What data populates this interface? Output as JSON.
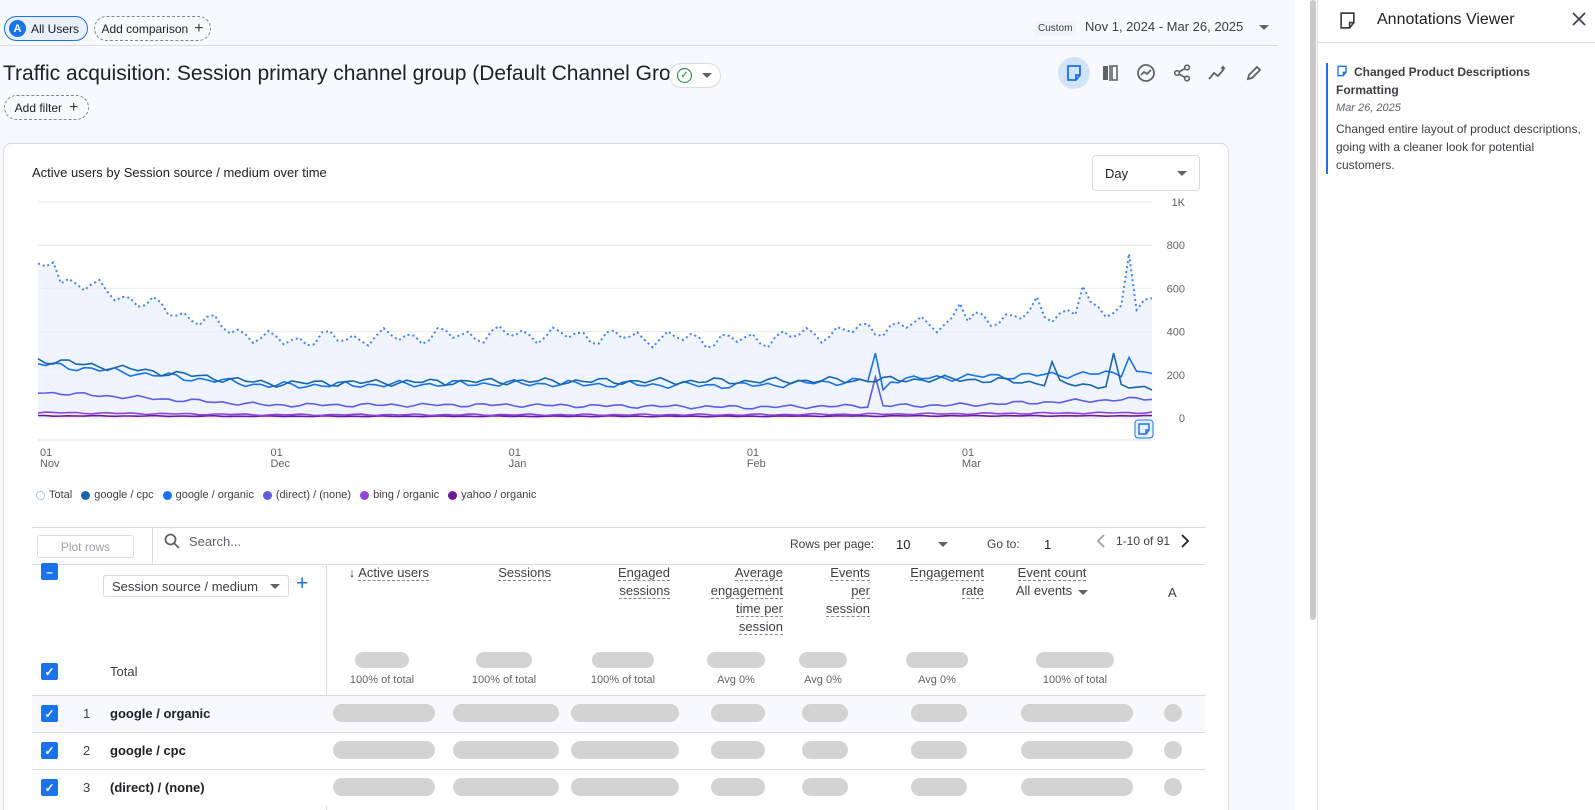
{
  "header": {
    "segment_chip": "All Users",
    "segment_avatar": "A",
    "add_comparison": "Add comparison",
    "date_badge": "Custom",
    "date_range": "Nov 1, 2024 - Mar 26, 2025"
  },
  "report": {
    "title": "Traffic acquisition: Session primary channel group (Default Channel Group)",
    "add_filter": "Add filter"
  },
  "chart": {
    "title": "Active users by Session source / medium over time",
    "granularity": "Day",
    "x_ticks": [
      {
        "day": "01",
        "month": "Nov"
      },
      {
        "day": "01",
        "month": "Dec"
      },
      {
        "day": "01",
        "month": "Jan"
      },
      {
        "day": "01",
        "month": "Feb"
      },
      {
        "day": "01",
        "month": "Mar"
      }
    ],
    "y_ticks": [
      "1K",
      "800",
      "600",
      "400",
      "200",
      "0"
    ],
    "legend": [
      {
        "label": "Total",
        "color": "#4285f4",
        "style": "dotted"
      },
      {
        "label": "google / cpc",
        "color": "#1967a8"
      },
      {
        "label": "google / organic",
        "color": "#1a73e8"
      },
      {
        "label": "(direct) / (none)",
        "color": "#5b5fe0"
      },
      {
        "label": "bing / organic",
        "color": "#8e44d6"
      },
      {
        "label": "yahoo / organic",
        "color": "#6a1b9a"
      }
    ]
  },
  "chart_data": {
    "type": "line",
    "title": "Active users by Session source / medium over time",
    "x": [
      "Nov 1",
      "Dec 1",
      "Jan 1",
      "Feb 1",
      "Mar 1",
      "Mar 26"
    ],
    "ylim": [
      0,
      1000
    ],
    "series": [
      {
        "name": "Total",
        "values": [
          680,
          360,
          390,
          360,
          450,
          520
        ]
      },
      {
        "name": "google / cpc",
        "values": [
          270,
          160,
          170,
          170,
          180,
          140
        ]
      },
      {
        "name": "google / organic",
        "values": [
          250,
          150,
          160,
          150,
          190,
          210
        ]
      },
      {
        "name": "(direct) / (none)",
        "values": [
          120,
          60,
          60,
          50,
          60,
          90
        ]
      },
      {
        "name": "bing / organic",
        "values": [
          25,
          15,
          15,
          15,
          20,
          25
        ]
      },
      {
        "name": "yahoo / organic",
        "values": [
          10,
          8,
          8,
          8,
          10,
          10
        ]
      }
    ]
  },
  "table": {
    "plot_rows": "Plot rows",
    "search_placeholder": "Search...",
    "rows_per_page_label": "Rows per page:",
    "rows_per_page": "10",
    "goto_label": "Go to:",
    "goto_value": "1",
    "page_range": "1-10 of 91",
    "dimension": "Session source / medium",
    "columns": [
      {
        "lines": [
          "Active users"
        ],
        "sub": "100% of total"
      },
      {
        "lines": [
          "Sessions"
        ],
        "sub": "100% of total"
      },
      {
        "lines": [
          "Engaged",
          "sessions"
        ],
        "sub": "100% of total"
      },
      {
        "lines": [
          "Average",
          "engagement",
          "time per",
          "session"
        ],
        "sub": "Avg 0%"
      },
      {
        "lines": [
          "Events",
          "per",
          "session"
        ],
        "sub": "Avg 0%"
      },
      {
        "lines": [
          "Engagement",
          "rate"
        ],
        "sub": "Avg 0%"
      },
      {
        "lines": [
          "Event count"
        ],
        "sub": "100% of total",
        "selector": "All events"
      }
    ],
    "cut_column": "A",
    "total_label": "Total",
    "rows": [
      {
        "num": "1",
        "label": "google / organic"
      },
      {
        "num": "2",
        "label": "google / cpc"
      },
      {
        "num": "3",
        "label": "(direct) / (none)"
      }
    ]
  },
  "annotations": {
    "panel_title": "Annotations Viewer",
    "items": [
      {
        "title": "Changed Product Descriptions Formatting",
        "date": "Mar 26, 2025",
        "description": "Changed entire layout of product descriptions, going with a cleaner look for potential customers."
      }
    ]
  }
}
